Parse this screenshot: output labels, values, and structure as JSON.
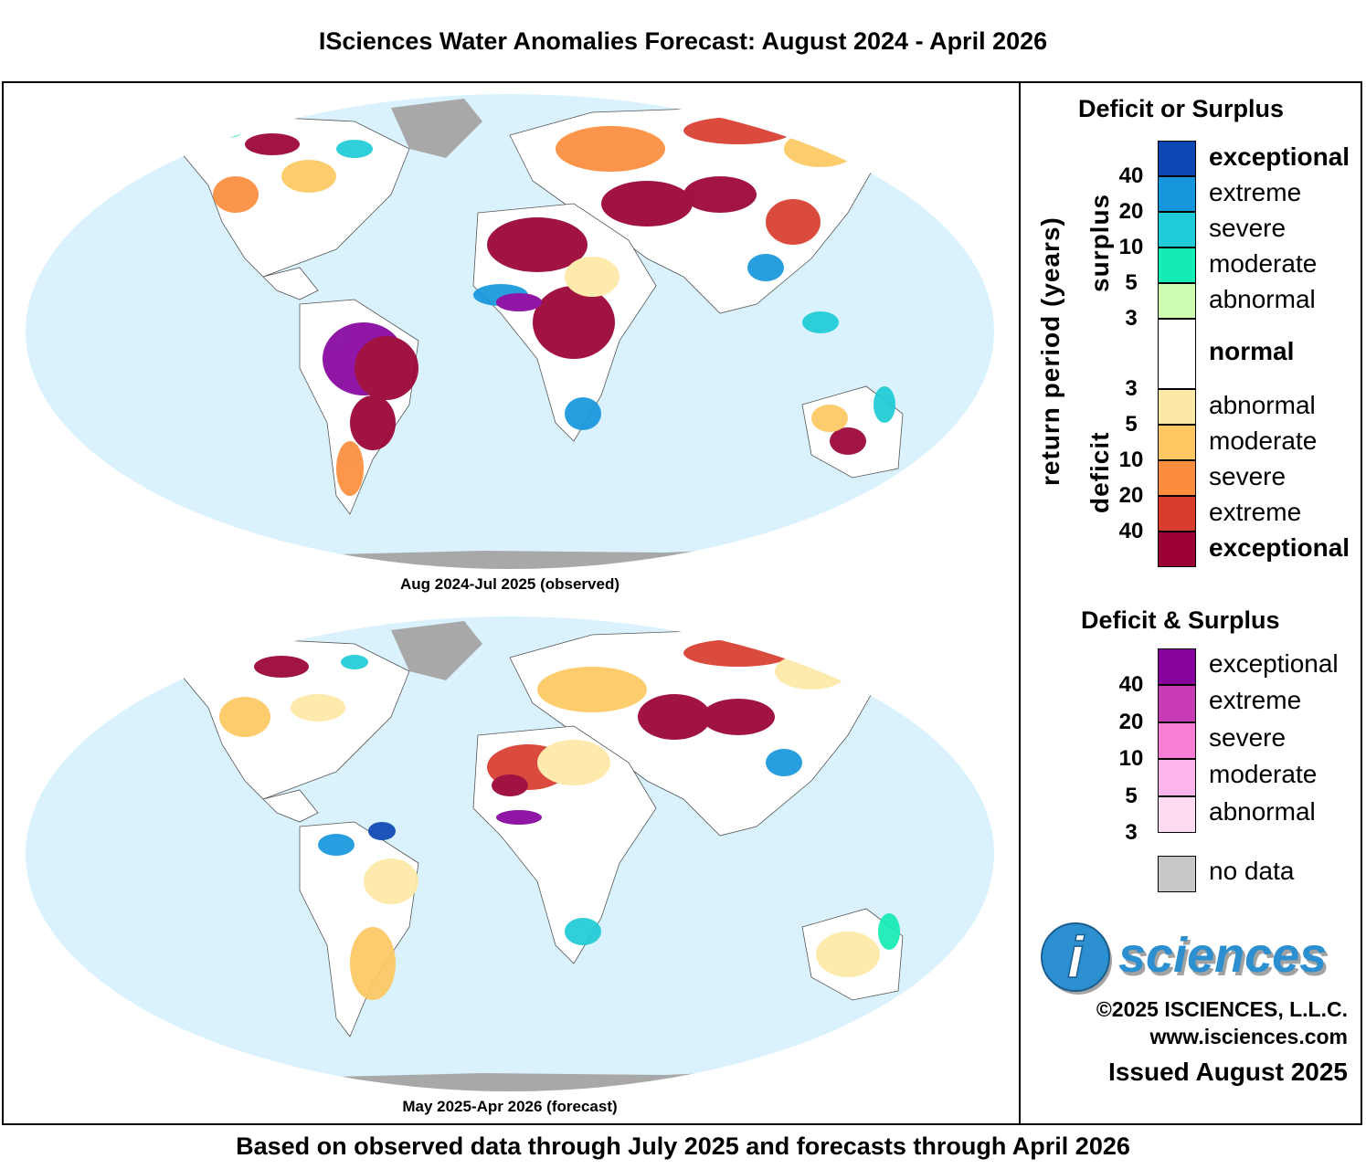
{
  "title": "ISciences Water Anomalies Forecast: August 2024 - April 2026",
  "footer": "Based on observed data through July 2025 and forecasts through April 2026",
  "maps": [
    {
      "caption": "Aug 2024-Jul 2025 (observed)"
    },
    {
      "caption": "May 2025-Apr 2026 (forecast)"
    }
  ],
  "legend": {
    "deficit_or_surplus": {
      "heading": "Deficit or Surplus",
      "axis_label": "return period (years)",
      "surplus_label": "surplus",
      "deficit_label": "deficit",
      "surplus_classes": [
        {
          "label": "exceptional",
          "color": "#0c47b4"
        },
        {
          "label": "extreme",
          "color": "#1596dc"
        },
        {
          "label": "severe",
          "color": "#1ecbd6"
        },
        {
          "label": "moderate",
          "color": "#14ecb4"
        },
        {
          "label": "abnormal",
          "color": "#cdfbb0"
        }
      ],
      "normal": {
        "label": "normal",
        "color": "#ffffff"
      },
      "deficit_classes": [
        {
          "label": "abnormal",
          "color": "#fde9a6"
        },
        {
          "label": "moderate",
          "color": "#fdc861"
        },
        {
          "label": "severe",
          "color": "#fb8d3c"
        },
        {
          "label": "extreme",
          "color": "#d83c2d"
        },
        {
          "label": "exceptional",
          "color": "#9a0034"
        }
      ],
      "surplus_ticks": [
        "40",
        "20",
        "10",
        "5",
        "3"
      ],
      "deficit_ticks": [
        "3",
        "5",
        "10",
        "20",
        "40"
      ]
    },
    "deficit_and_surplus": {
      "heading": "Deficit & Surplus",
      "classes": [
        {
          "label": "exceptional",
          "color": "#87049e"
        },
        {
          "label": "extreme",
          "color": "#c83bb6"
        },
        {
          "label": "severe",
          "color": "#f77fd6"
        },
        {
          "label": "moderate",
          "color": "#fcb4ea"
        },
        {
          "label": "abnormal",
          "color": "#fddcf1"
        }
      ],
      "ticks": [
        "40",
        "20",
        "10",
        "5",
        "3"
      ],
      "no_data": {
        "label": "no data",
        "color": "#c8c8c8"
      }
    }
  },
  "branding": {
    "logo_letter": "i",
    "logo_text": "sciences",
    "copyright": "©2025 ISCIENCES, L.L.C.",
    "website": "www.isciences.com",
    "issued": "Issued August 2025"
  },
  "colors": {
    "ocean": "#daf2fd",
    "land_normal": "#ffffff",
    "antarctica": "#a8a8a8"
  }
}
